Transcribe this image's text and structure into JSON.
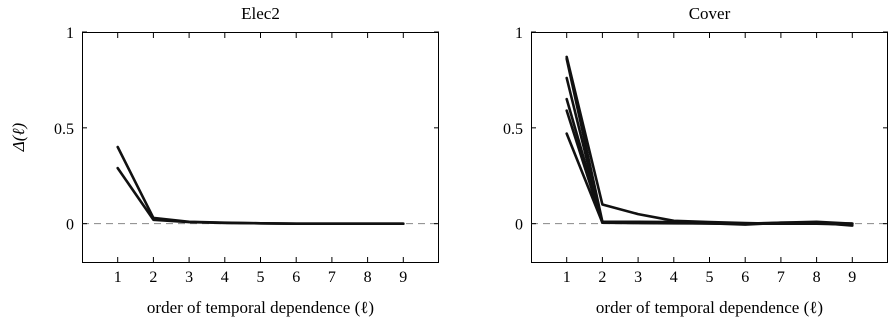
{
  "chart_data": [
    {
      "type": "line",
      "title": "Elec2",
      "xlabel": "order of temporal dependence (ℓ)",
      "ylabel": "Δ(ℓ)",
      "x": [
        1,
        2,
        3,
        4,
        5,
        6,
        7,
        8,
        9
      ],
      "xlim": [
        0,
        10
      ],
      "ylim": [
        -0.2,
        1
      ],
      "yticks": [
        0,
        0.5,
        1
      ],
      "ytick_labels": [
        "0",
        "0.5",
        "1"
      ],
      "reference_line": 0,
      "grid": false,
      "series": [
        {
          "values": [
            0.4,
            0.03,
            0.01,
            0.005,
            0.002,
            0.0,
            0.0,
            0.0,
            0.0
          ]
        },
        {
          "values": [
            0.29,
            0.02,
            0.008,
            0.004,
            0.002,
            0.0,
            0.0,
            0.0,
            0.0
          ]
        }
      ]
    },
    {
      "type": "line",
      "title": "Cover",
      "xlabel": "order of temporal dependence (ℓ)",
      "ylabel": "",
      "x": [
        1,
        2,
        3,
        4,
        5,
        6,
        7,
        8,
        9
      ],
      "xlim": [
        0,
        10
      ],
      "ylim": [
        -0.2,
        1
      ],
      "yticks": [
        0,
        0.5,
        1
      ],
      "ytick_labels": [
        "0",
        "0.5",
        "1"
      ],
      "reference_line": 0,
      "grid": false,
      "series": [
        {
          "values": [
            0.87,
            0.1,
            0.05,
            0.015,
            0.008,
            0.003,
            0.0,
            0.0,
            -0.005
          ]
        },
        {
          "values": [
            0.86,
            0.01,
            0.01,
            0.008,
            0.005,
            0.0,
            0.005,
            0.01,
            0.0
          ]
        },
        {
          "values": [
            0.76,
            0.005,
            0.005,
            0.005,
            0.002,
            -0.005,
            0.005,
            0.005,
            -0.01
          ]
        },
        {
          "values": [
            0.65,
            0.005,
            0.005,
            0.003,
            0.002,
            0.0,
            0.0,
            0.0,
            0.0
          ]
        },
        {
          "values": [
            0.59,
            0.005,
            0.005,
            0.003,
            0.002,
            0.0,
            0.0,
            0.0,
            0.0
          ]
        },
        {
          "values": [
            0.47,
            0.005,
            0.003,
            0.002,
            0.001,
            0.0,
            0.0,
            0.0,
            0.0
          ]
        }
      ]
    }
  ]
}
